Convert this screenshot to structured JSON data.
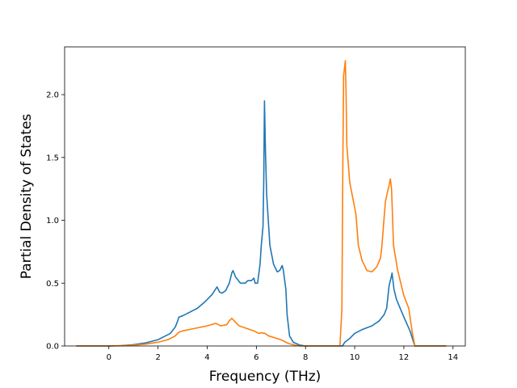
{
  "chart_data": {
    "type": "line",
    "title": "",
    "xlabel": "Frequency (THz)",
    "ylabel": "Partial Density of States",
    "xlim": [
      -1.8,
      14.5
    ],
    "ylim": [
      0.0,
      2.38
    ],
    "xticks": [
      0,
      2,
      4,
      6,
      8,
      10,
      12,
      14
    ],
    "yticks": [
      0.0,
      0.5,
      1.0,
      1.5,
      2.0
    ],
    "xtick_labels": [
      "0",
      "2",
      "4",
      "6",
      "8",
      "10",
      "12",
      "14"
    ],
    "ytick_labels": [
      "0.0",
      "0.5",
      "1.0",
      "1.5",
      "2.0"
    ],
    "grid": false,
    "legend": "none",
    "series": [
      {
        "color": "#1f77b4",
        "points": [
          [
            -1.3,
            0.0
          ],
          [
            0.0,
            0.0
          ],
          [
            0.5,
            0.003
          ],
          [
            1.0,
            0.01
          ],
          [
            1.5,
            0.025
          ],
          [
            2.0,
            0.05
          ],
          [
            2.3,
            0.08
          ],
          [
            2.5,
            0.1
          ],
          [
            2.7,
            0.15
          ],
          [
            2.8,
            0.2
          ],
          [
            2.85,
            0.23
          ],
          [
            3.0,
            0.24
          ],
          [
            3.3,
            0.27
          ],
          [
            3.6,
            0.3
          ],
          [
            3.9,
            0.35
          ],
          [
            4.2,
            0.41
          ],
          [
            4.4,
            0.47
          ],
          [
            4.5,
            0.43
          ],
          [
            4.6,
            0.42
          ],
          [
            4.75,
            0.44
          ],
          [
            4.9,
            0.5
          ],
          [
            5.0,
            0.58
          ],
          [
            5.05,
            0.6
          ],
          [
            5.15,
            0.55
          ],
          [
            5.35,
            0.5
          ],
          [
            5.55,
            0.5
          ],
          [
            5.65,
            0.52
          ],
          [
            5.8,
            0.52
          ],
          [
            5.9,
            0.54
          ],
          [
            5.95,
            0.5
          ],
          [
            6.05,
            0.5
          ],
          [
            6.15,
            0.65
          ],
          [
            6.2,
            0.8
          ],
          [
            6.27,
            0.95
          ],
          [
            6.3,
            1.3
          ],
          [
            6.33,
            1.95
          ],
          [
            6.37,
            1.55
          ],
          [
            6.42,
            1.2
          ],
          [
            6.55,
            0.8
          ],
          [
            6.7,
            0.65
          ],
          [
            6.85,
            0.59
          ],
          [
            6.95,
            0.6
          ],
          [
            7.05,
            0.64
          ],
          [
            7.1,
            0.6
          ],
          [
            7.2,
            0.45
          ],
          [
            7.25,
            0.25
          ],
          [
            7.35,
            0.08
          ],
          [
            7.5,
            0.03
          ],
          [
            7.75,
            0.008
          ],
          [
            8.0,
            0.0
          ],
          [
            9.5,
            0.0
          ],
          [
            9.6,
            0.03
          ],
          [
            9.8,
            0.06
          ],
          [
            10.0,
            0.1
          ],
          [
            10.3,
            0.13
          ],
          [
            10.7,
            0.16
          ],
          [
            11.0,
            0.2
          ],
          [
            11.2,
            0.25
          ],
          [
            11.3,
            0.3
          ],
          [
            11.4,
            0.48
          ],
          [
            11.5,
            0.56
          ],
          [
            11.52,
            0.58
          ],
          [
            11.6,
            0.45
          ],
          [
            11.7,
            0.37
          ],
          [
            12.0,
            0.23
          ],
          [
            12.25,
            0.12
          ],
          [
            12.38,
            0.04
          ],
          [
            12.45,
            0.0
          ],
          [
            13.7,
            0.0
          ]
        ]
      },
      {
        "color": "#ff7f0e",
        "points": [
          [
            -1.3,
            0.0
          ],
          [
            0.0,
            0.0
          ],
          [
            0.5,
            0.002
          ],
          [
            1.0,
            0.006
          ],
          [
            1.5,
            0.015
          ],
          [
            2.0,
            0.03
          ],
          [
            2.4,
            0.05
          ],
          [
            2.7,
            0.08
          ],
          [
            2.85,
            0.11
          ],
          [
            3.0,
            0.12
          ],
          [
            3.5,
            0.14
          ],
          [
            4.0,
            0.16
          ],
          [
            4.35,
            0.18
          ],
          [
            4.45,
            0.17
          ],
          [
            4.55,
            0.16
          ],
          [
            4.8,
            0.17
          ],
          [
            4.9,
            0.2
          ],
          [
            5.0,
            0.22
          ],
          [
            5.1,
            0.2
          ],
          [
            5.3,
            0.16
          ],
          [
            5.6,
            0.14
          ],
          [
            5.9,
            0.12
          ],
          [
            6.0,
            0.11
          ],
          [
            6.1,
            0.1
          ],
          [
            6.2,
            0.105
          ],
          [
            6.35,
            0.1
          ],
          [
            6.5,
            0.08
          ],
          [
            7.0,
            0.05
          ],
          [
            7.3,
            0.02
          ],
          [
            7.6,
            0.005
          ],
          [
            7.8,
            0.0
          ],
          [
            9.4,
            0.0
          ],
          [
            9.48,
            0.3
          ],
          [
            9.52,
            1.5
          ],
          [
            9.55,
            2.15
          ],
          [
            9.62,
            2.27
          ],
          [
            9.65,
            2.0
          ],
          [
            9.68,
            1.6
          ],
          [
            9.8,
            1.3
          ],
          [
            10.0,
            1.1
          ],
          [
            10.05,
            1.05
          ],
          [
            10.15,
            0.8
          ],
          [
            10.3,
            0.68
          ],
          [
            10.5,
            0.6
          ],
          [
            10.7,
            0.59
          ],
          [
            10.9,
            0.63
          ],
          [
            11.05,
            0.7
          ],
          [
            11.1,
            0.78
          ],
          [
            11.25,
            1.15
          ],
          [
            11.4,
            1.28
          ],
          [
            11.45,
            1.33
          ],
          [
            11.5,
            1.25
          ],
          [
            11.58,
            0.8
          ],
          [
            11.75,
            0.6
          ],
          [
            12.0,
            0.4
          ],
          [
            12.2,
            0.3
          ],
          [
            12.35,
            0.1
          ],
          [
            12.45,
            0.0
          ],
          [
            13.7,
            0.0
          ]
        ]
      }
    ]
  }
}
